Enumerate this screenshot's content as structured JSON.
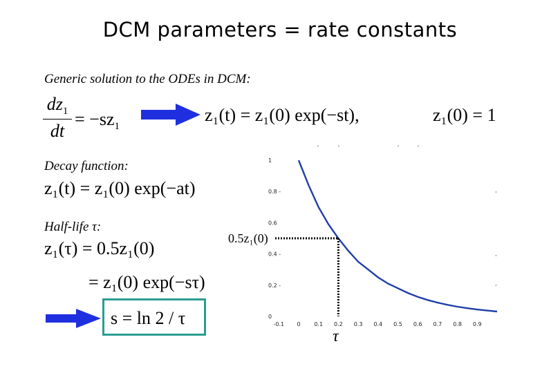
{
  "title": "DCM parameters = rate constants",
  "labels": {
    "generic": "Generic solution to the ODEs in DCM:",
    "decay": "Decay function:",
    "halflife": "Half-life τ:"
  },
  "equations": {
    "ode_lhs_num": "dz",
    "ode_lhs_den": "dt",
    "ode_rhs": "= −sz",
    "solution": "z₁(t) = z₁(0) exp(−st),",
    "initial": "z₁(0) = 1",
    "decay": "z₁(t) = z₁(0) exp(−at)",
    "half1": "z₁(τ) = 0.5z₁(0)",
    "half2": "= z₁(0) exp(−sτ)",
    "result": "s = ln 2 / τ"
  },
  "colors": {
    "curve": "#1f3ea8",
    "arrow": "#1f2fe0",
    "box": "#2a9d8f",
    "dotted": "#000000"
  },
  "chart_data": {
    "type": "line",
    "title": "",
    "xlabel": "τ",
    "ylabel": "",
    "half_label": "0.5z₁(0)",
    "x_ticks": [
      "-0.1",
      "0",
      "0.1",
      "0.2",
      "0.3",
      "0.4",
      "0.5",
      "0.6",
      "0.7",
      "0.8",
      "0.9"
    ],
    "y_ticks": [
      "0",
      "0.2 -",
      "0.4 -",
      "0.6",
      "0.8 -",
      "1"
    ],
    "xlim": [
      -0.1,
      1.0
    ],
    "ylim": [
      0,
      1
    ],
    "series": [
      {
        "values_x": [
          0,
          0.05,
          0.1,
          0.15,
          0.2,
          0.25,
          0.3,
          0.35,
          0.4,
          0.45,
          0.5,
          0.55,
          0.6,
          0.65,
          0.7,
          0.75,
          0.8,
          0.85,
          0.9,
          0.95,
          1.0
        ],
        "values_y": [
          1.0,
          0.84,
          0.7,
          0.59,
          0.5,
          0.42,
          0.35,
          0.3,
          0.25,
          0.21,
          0.18,
          0.15,
          0.125,
          0.105,
          0.088,
          0.074,
          0.062,
          0.052,
          0.044,
          0.037,
          0.031
        ]
      }
    ],
    "half_life_x": 0.2,
    "half_life_y": 0.5
  }
}
